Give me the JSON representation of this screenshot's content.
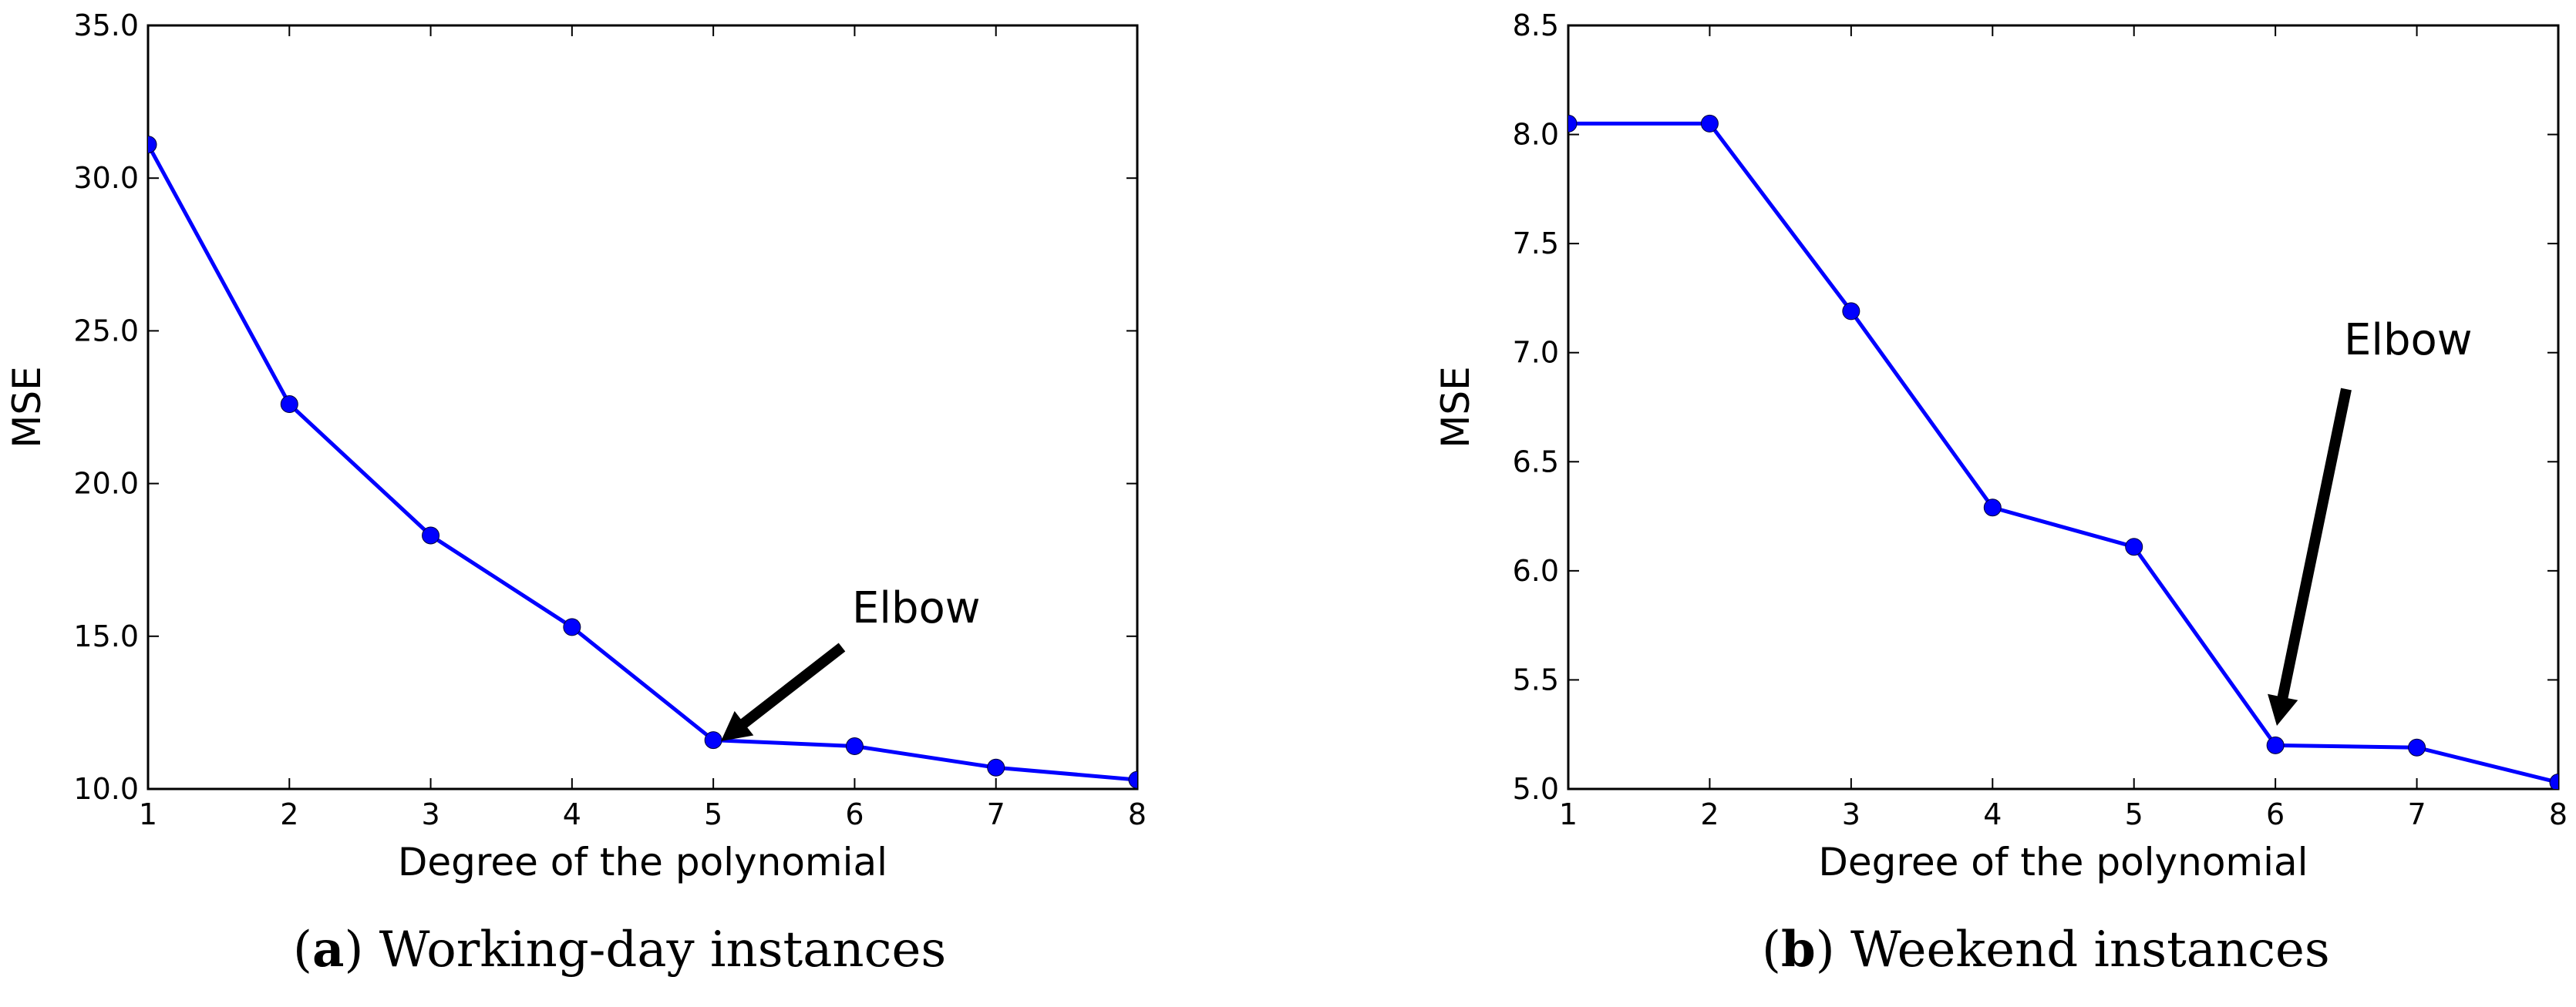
{
  "chart_data": [
    {
      "type": "line",
      "id": "a",
      "x": [
        1,
        2,
        3,
        4,
        5,
        6,
        7,
        8
      ],
      "series": [
        {
          "name": "MSE",
          "values": [
            31.1,
            22.6,
            18.3,
            15.3,
            11.6,
            11.4,
            10.7,
            10.3
          ]
        }
      ],
      "xlabel": "Degree of the polynomial",
      "ylabel": "MSE",
      "xlim": [
        1,
        8
      ],
      "ylim": [
        10.0,
        35.0
      ],
      "xticks": [
        "1",
        "2",
        "3",
        "4",
        "5",
        "6",
        "7",
        "8"
      ],
      "yticks": [
        "10.0",
        "15.0",
        "20.0",
        "25.0",
        "30.0",
        "35.0"
      ],
      "annotation": {
        "text": "Elbow",
        "x": 5,
        "y": 11.6
      },
      "caption": {
        "letter": "a",
        "text": "Working-day instances"
      },
      "color": "#0000ff"
    },
    {
      "type": "line",
      "id": "b",
      "x": [
        1,
        2,
        3,
        4,
        5,
        6,
        7,
        8
      ],
      "series": [
        {
          "name": "MSE",
          "values": [
            8.05,
            8.05,
            7.19,
            6.29,
            6.11,
            5.2,
            5.19,
            5.03
          ]
        }
      ],
      "xlabel": "Degree of the polynomial",
      "ylabel": "MSE",
      "xlim": [
        1,
        8
      ],
      "ylim": [
        5.0,
        8.5
      ],
      "xticks": [
        "1",
        "2",
        "3",
        "4",
        "5",
        "6",
        "7",
        "8"
      ],
      "yticks": [
        "5.0",
        "5.5",
        "6.0",
        "6.5",
        "7.0",
        "7.5",
        "8.0",
        "8.5"
      ],
      "annotation": {
        "text": "Elbow",
        "x": 6,
        "y": 5.2
      },
      "caption": {
        "letter": "b",
        "text": "Weekend instances"
      },
      "color": "#0000ff"
    }
  ]
}
